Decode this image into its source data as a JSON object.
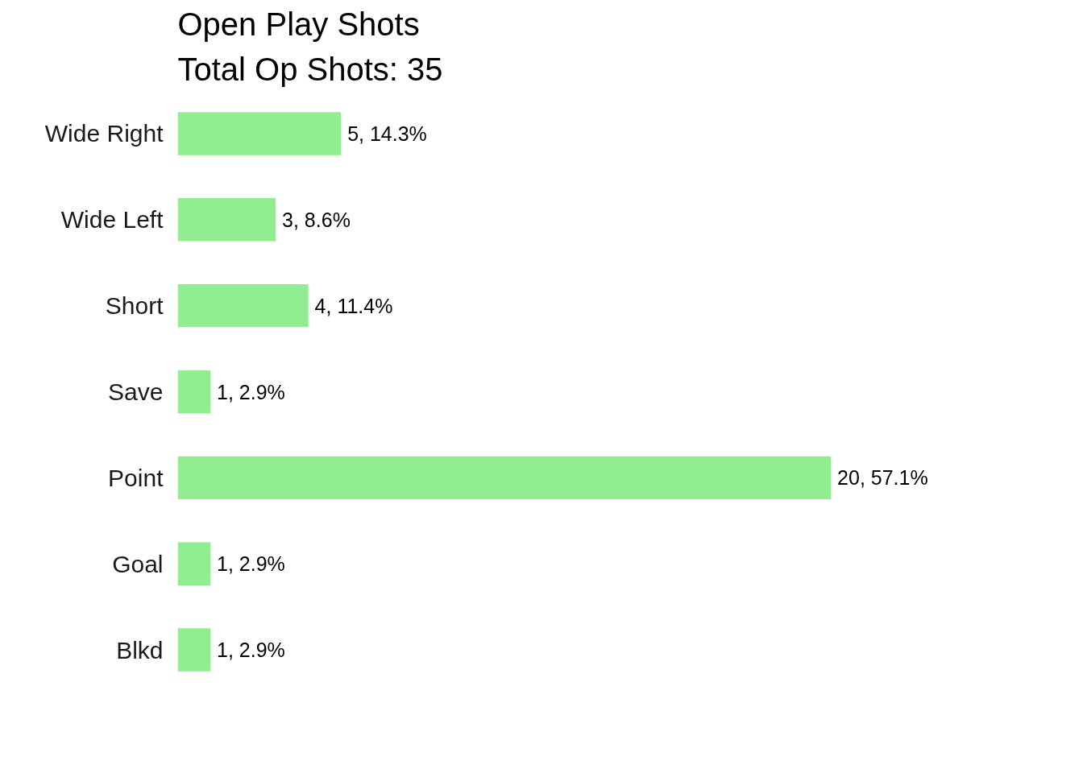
{
  "chart_data": {
    "type": "bar",
    "orientation": "horizontal",
    "title": "Open Play Shots",
    "subtitle": "Total Op Shots: 35",
    "categories": [
      "Wide Right",
      "Wide Left",
      "Short",
      "Save",
      "Point",
      "Goal",
      "Blkd"
    ],
    "values": [
      5,
      3,
      4,
      1,
      20,
      1,
      1
    ],
    "value_labels": [
      "5, 14.3%",
      "3, 8.6%",
      "4, 11.4%",
      "1, 2.9%",
      "20, 57.1%",
      "1, 2.9%",
      "1, 2.9%"
    ],
    "color": "#90ee90",
    "tick_labels": "y",
    "grid": false
  }
}
